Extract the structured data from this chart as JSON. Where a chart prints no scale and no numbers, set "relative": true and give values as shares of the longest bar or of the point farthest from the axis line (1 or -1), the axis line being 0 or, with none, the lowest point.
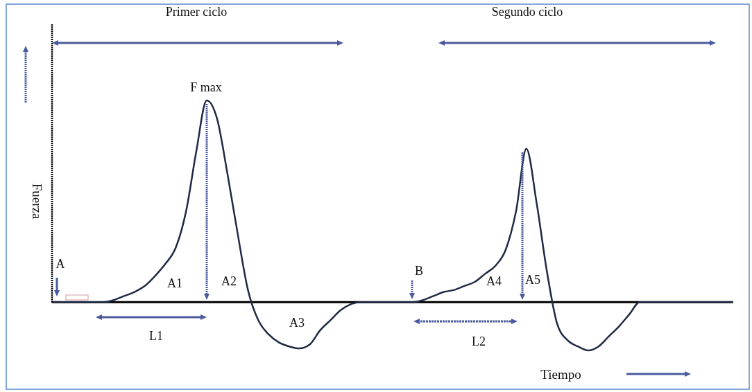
{
  "chart_data": {
    "type": "line",
    "relative": true,
    "xlabel": "Tiempo",
    "ylabel": "Fuerza",
    "color": "#1f2a44",
    "annotations": [
      "Primer ciclo",
      "Segundo ciclo",
      "F max",
      "A",
      "A1",
      "A2",
      "A3",
      "B",
      "A4",
      "A5",
      "L1",
      "L2"
    ],
    "categories": [
      null,
      null,
      null,
      null,
      null,
      null,
      null,
      null,
      null,
      null,
      null,
      null,
      null,
      null,
      null,
      null,
      null,
      null,
      null,
      null,
      null,
      null,
      null,
      null,
      null,
      null,
      null,
      null,
      null,
      null,
      null,
      null,
      null,
      null,
      null,
      null,
      null,
      null,
      null,
      null,
      null,
      null,
      null,
      null,
      null,
      null,
      null,
      null,
      null,
      null,
      null,
      null,
      null,
      null,
      null,
      null,
      null,
      null,
      null,
      null,
      null,
      null,
      null,
      null,
      null,
      null,
      null
    ],
    "values": [
      0,
      0,
      0,
      0,
      0,
      0,
      0.01,
      0.03,
      0.05,
      0.08,
      0.13,
      0.19,
      0.27,
      0.45,
      0.75,
      1,
      0.91,
      0.64,
      0.34,
      0.06,
      -0.09,
      -0.16,
      -0.2,
      -0.22,
      -0.23,
      -0.21,
      -0.14,
      -0.09,
      -0.04,
      -0.01,
      0,
      0,
      0,
      0,
      0,
      0,
      0.01,
      0.03,
      0.05,
      0.06,
      0.08,
      0.1,
      0.14,
      0.18,
      0.26,
      0.45,
      0.76,
      0.49,
      0.15,
      -0.11,
      -0.19,
      -0.22,
      -0.24,
      -0.22,
      -0.17,
      -0.12,
      -0.06,
      0,
      0,
      0,
      0,
      0,
      0,
      0,
      0,
      0,
      0
    ]
  }
}
